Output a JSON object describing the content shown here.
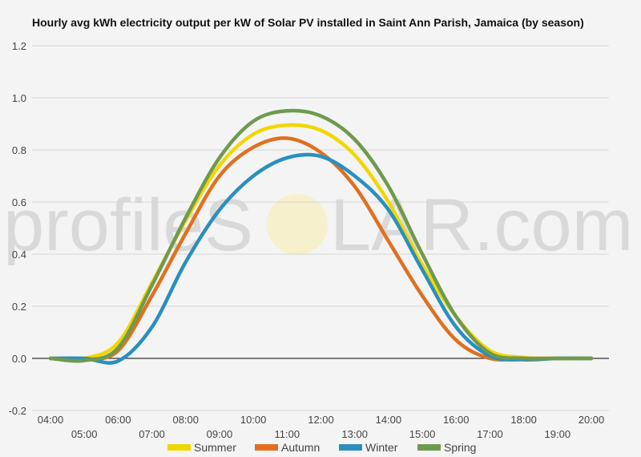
{
  "watermark": {
    "left": "profileS",
    "o": "O",
    "right": "LAR.com"
  },
  "chart_data": {
    "type": "line",
    "title": "Hourly avg kWh electricity output per kW of Solar PV installed in Saint Ann Parish, Jamaica (by season)",
    "xlabel": "",
    "ylabel": "",
    "x": [
      "04:00",
      "05:00",
      "06:00",
      "07:00",
      "08:00",
      "09:00",
      "10:00",
      "11:00",
      "12:00",
      "13:00",
      "14:00",
      "15:00",
      "16:00",
      "17:00",
      "18:00",
      "19:00",
      "20:00"
    ],
    "ylim": [
      -0.2,
      1.2
    ],
    "yticks": [
      "-0.2",
      "0.0",
      "0.2",
      "0.4",
      "0.6",
      "0.8",
      "1.0",
      "1.2"
    ],
    "grid": true,
    "legend_position": "bottom",
    "series": [
      {
        "name": "Summer",
        "color": "#f2d600",
        "values": [
          0.0,
          0.0,
          0.06,
          0.29,
          0.53,
          0.74,
          0.86,
          0.895,
          0.875,
          0.78,
          0.6,
          0.36,
          0.16,
          0.03,
          0.003,
          0.0,
          0.0
        ]
      },
      {
        "name": "Autumn",
        "color": "#e07020",
        "values": [
          0.0,
          -0.005,
          0.03,
          0.24,
          0.48,
          0.7,
          0.81,
          0.845,
          0.79,
          0.66,
          0.45,
          0.24,
          0.07,
          0.0,
          0.0,
          0.0,
          0.0
        ]
      },
      {
        "name": "Winter",
        "color": "#2a8fc0",
        "values": [
          0.0,
          0.0,
          -0.01,
          0.12,
          0.37,
          0.57,
          0.7,
          0.77,
          0.775,
          0.7,
          0.57,
          0.34,
          0.12,
          0.01,
          -0.005,
          0.0,
          0.0
        ]
      },
      {
        "name": "Spring",
        "color": "#6e9a4e",
        "values": [
          0.0,
          -0.008,
          0.04,
          0.28,
          0.54,
          0.77,
          0.91,
          0.95,
          0.93,
          0.84,
          0.66,
          0.4,
          0.16,
          0.02,
          0.0,
          0.0,
          0.0
        ]
      }
    ]
  }
}
